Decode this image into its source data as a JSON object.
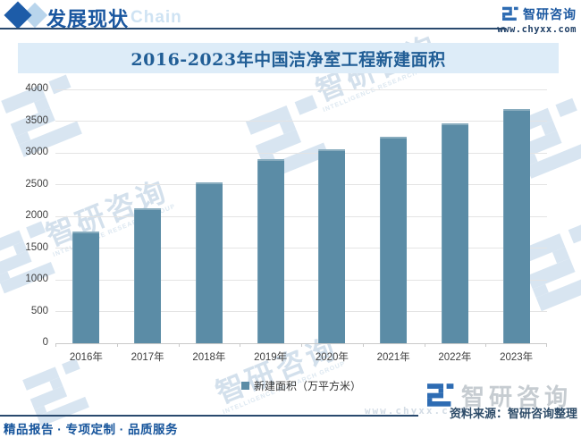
{
  "header": {
    "section_title": "发展现状",
    "watermark_text": "Chain",
    "brand_name": "智研咨询",
    "website": "www.chyxx.com"
  },
  "chart_data": {
    "type": "bar",
    "title": "2016-2023年中国洁净室工程新建面积",
    "categories": [
      "2016年",
      "2017年",
      "2018年",
      "2019年",
      "2020年",
      "2021年",
      "2022年",
      "2023年"
    ],
    "values": [
      1760,
      2130,
      2540,
      2900,
      3050,
      3260,
      3470,
      3690
    ],
    "series_name": "新建面积（万平方米）",
    "xlabel": "",
    "ylabel": "",
    "ylim": [
      0,
      4000
    ],
    "ytick_step": 500,
    "grid": true,
    "legend_position": "bottom",
    "bar_color": "#5b8ca6"
  },
  "legend": {
    "label": "新建面积（万平方米）"
  },
  "footer": {
    "source_label": "资料来源：智研咨询整理",
    "services_text": "精品报告 · 专项定制 · 品质服务",
    "brand_watermark": "智研咨询"
  },
  "watermarks": {
    "logo_text": "智研咨询",
    "sub_text": "INTELLIGENCE RESEARCH GROUP",
    "url_text": "www.chyxx.com"
  },
  "colors": {
    "bar": "#5b8ca6",
    "accent_blue": "#1a57a0",
    "band_background": "#ddecf8",
    "title_text": "#215e96",
    "rule_navy": "#2a4a6e",
    "gridline": "#e4e4e4",
    "axis_text": "#3f3f3f",
    "watermark_light_blue": "#d8e5f1",
    "watermark_gray": "#c6ccd1"
  }
}
